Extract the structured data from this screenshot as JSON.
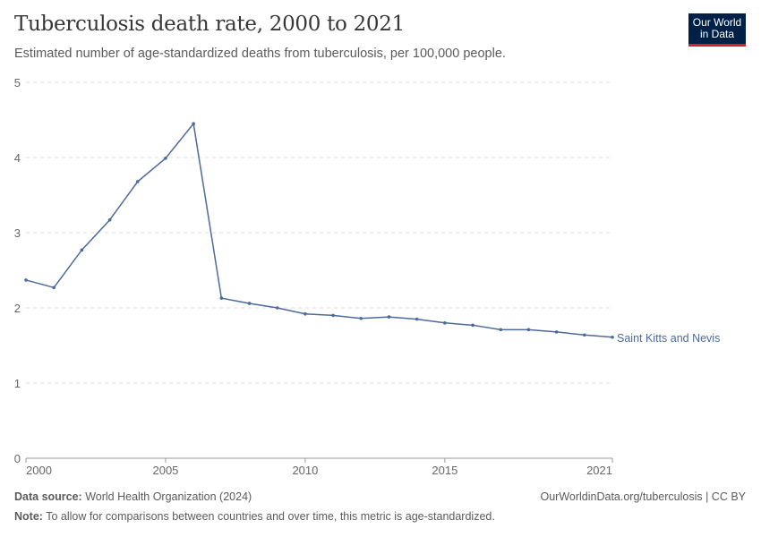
{
  "header": {
    "title": "Tuberculosis death rate, 2000 to 2021",
    "subtitle": "Estimated number of age-standardized deaths from tuberculosis, per 100,000 people.",
    "logo": "Our World in Data"
  },
  "footer": {
    "source_label": "Data source:",
    "source": "World Health Organization (2024)",
    "url": "OurWorldinData.org/tuberculosis | CC BY",
    "note_label": "Note:",
    "note": "To allow for comparisons between countries and over time, this metric is age-standardized."
  },
  "chart_data": {
    "type": "line",
    "title": "Tuberculosis death rate, 2000 to 2021",
    "xlim": [
      2000,
      2021
    ],
    "ylim": [
      0,
      5
    ],
    "x_ticks": [
      "2000",
      "2005",
      "2010",
      "2015",
      "2021"
    ],
    "y_ticks": [
      "0",
      "1",
      "2",
      "3",
      "4",
      "5"
    ],
    "grid": "horizontal dashed",
    "colors": {
      "series": "#4c6a9c"
    },
    "series": [
      {
        "name": "Saint Kitts and Nevis",
        "x": [
          2000,
          2001,
          2002,
          2003,
          2004,
          2005,
          2006,
          2007,
          2008,
          2009,
          2010,
          2011,
          2012,
          2013,
          2014,
          2015,
          2016,
          2017,
          2018,
          2019,
          2020,
          2021
        ],
        "values": [
          2.37,
          2.27,
          2.77,
          3.17,
          3.68,
          3.99,
          4.45,
          2.13,
          2.06,
          2.0,
          1.92,
          1.9,
          1.86,
          1.88,
          1.85,
          1.8,
          1.77,
          1.71,
          1.71,
          1.68,
          1.64,
          1.61
        ]
      }
    ]
  }
}
